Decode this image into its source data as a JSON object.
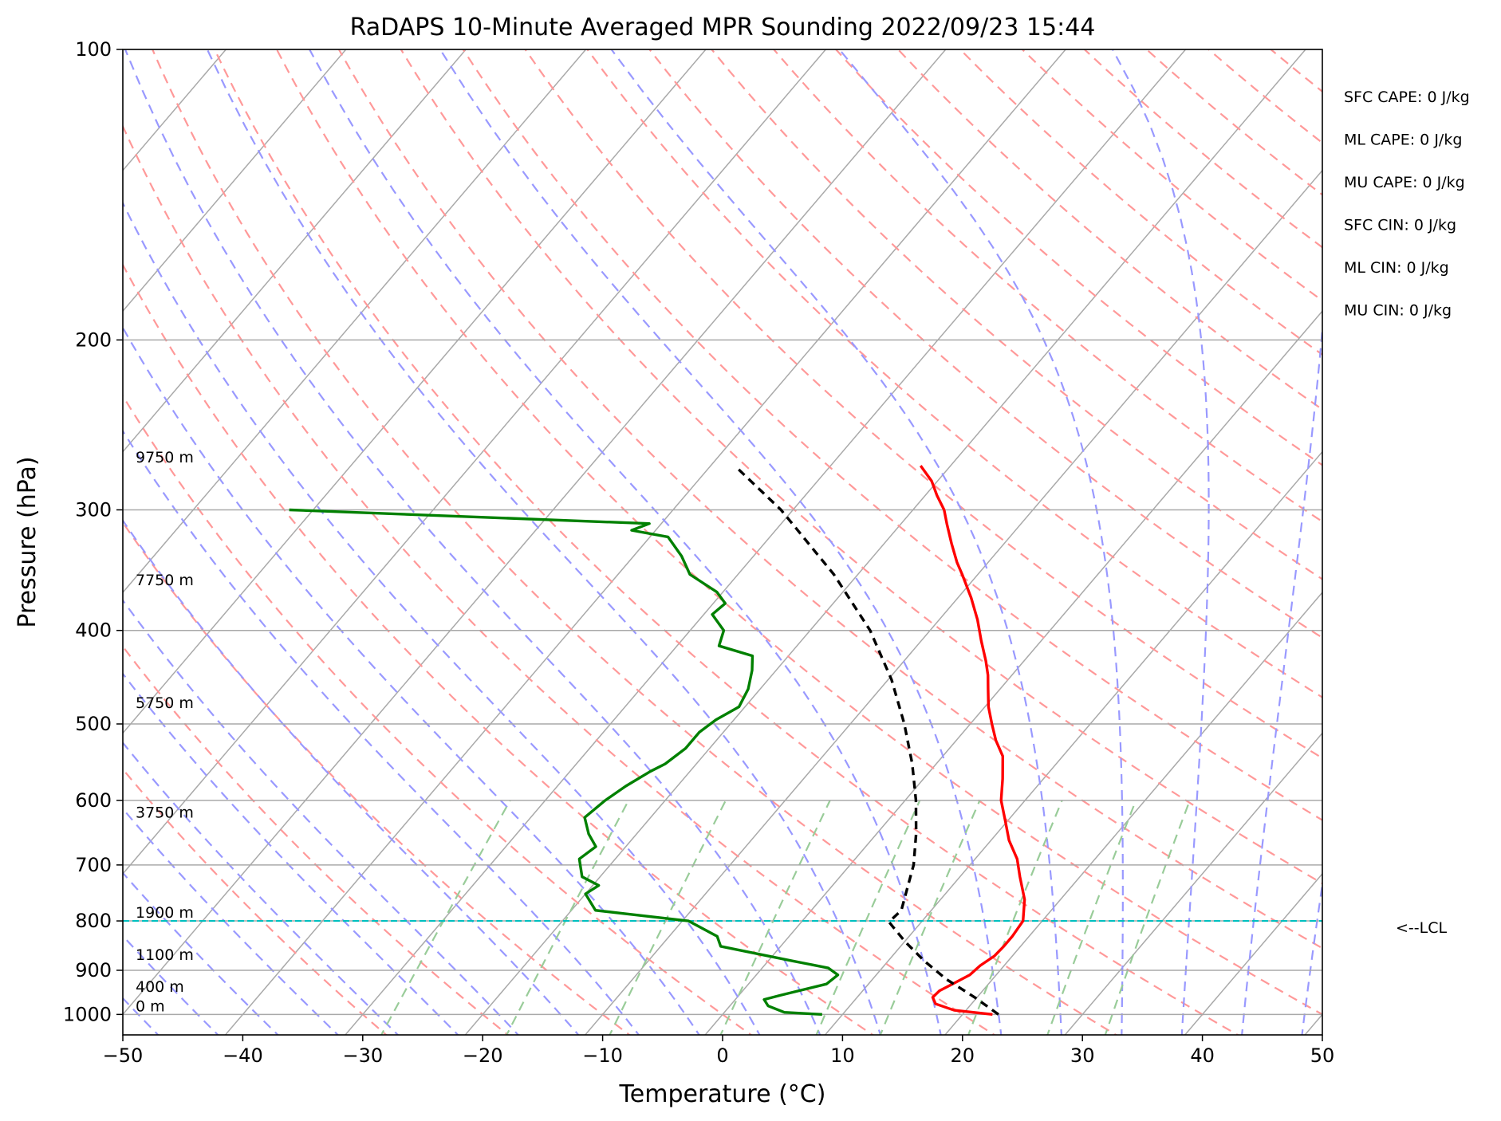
{
  "chart_data": {
    "type": "skew-t",
    "title": "RaDAPS 10-Minute Averaged MPR Sounding 2022/09/23 15:44",
    "xlabel": "Temperature (°C)",
    "ylabel": "Pressure (hPa)",
    "xlim": [
      -50,
      50
    ],
    "ylim": [
      1050,
      100
    ],
    "y_scale": "log",
    "skew_deg_per_decade": 68.6,
    "x_ticks": [
      -50,
      -40,
      -30,
      -20,
      -10,
      0,
      10,
      20,
      30,
      40,
      50
    ],
    "x_tick_labels": [
      "−50",
      "−40",
      "−30",
      "−20",
      "−10",
      "0",
      "10",
      "20",
      "30",
      "40",
      "50"
    ],
    "y_ticks": [
      1000,
      900,
      800,
      700,
      600,
      500,
      400,
      300,
      200,
      100
    ],
    "y_tick_labels": [
      "1000",
      "900",
      "800",
      "700",
      "600",
      "500",
      "400",
      "300",
      "200",
      "100"
    ],
    "grid": true,
    "series": [
      {
        "kind": "temperature",
        "color": "#ff0000",
        "points": [
          [
            1000,
            22.5
          ],
          [
            990,
            19.0
          ],
          [
            975,
            17.0
          ],
          [
            960,
            16.3
          ],
          [
            945,
            16.4
          ],
          [
            930,
            17.0
          ],
          [
            910,
            17.8
          ],
          [
            890,
            18.0
          ],
          [
            870,
            18.5
          ],
          [
            850,
            18.6
          ],
          [
            830,
            18.6
          ],
          [
            800,
            18.4
          ],
          [
            760,
            17.0
          ],
          [
            720,
            15.0
          ],
          [
            690,
            13.5
          ],
          [
            660,
            11.5
          ],
          [
            630,
            9.8
          ],
          [
            600,
            8.0
          ],
          [
            570,
            6.6
          ],
          [
            540,
            5.0
          ],
          [
            520,
            3.3
          ],
          [
            500,
            1.8
          ],
          [
            480,
            0.3
          ],
          [
            460,
            -1.0
          ],
          [
            445,
            -2.0
          ],
          [
            430,
            -3.2
          ],
          [
            410,
            -5.0
          ],
          [
            390,
            -6.8
          ],
          [
            370,
            -8.9
          ],
          [
            350,
            -11.3
          ],
          [
            340,
            -12.6
          ],
          [
            325,
            -14.4
          ],
          [
            310,
            -16.2
          ],
          [
            300,
            -17.4
          ],
          [
            290,
            -19.0
          ],
          [
            280,
            -20.5
          ],
          [
            270,
            -22.5
          ]
        ]
      },
      {
        "kind": "dewpoint",
        "color": "#008000",
        "points": [
          [
            1000,
            8.3
          ],
          [
            995,
            5.0
          ],
          [
            980,
            3.2
          ],
          [
            965,
            2.4
          ],
          [
            955,
            3.5
          ],
          [
            930,
            6.5
          ],
          [
            910,
            6.8
          ],
          [
            895,
            5.5
          ],
          [
            880,
            2.0
          ],
          [
            850,
            -5.0
          ],
          [
            830,
            -6.0
          ],
          [
            800,
            -9.5
          ],
          [
            780,
            -18.0
          ],
          [
            750,
            -20.0
          ],
          [
            735,
            -19.5
          ],
          [
            720,
            -21.5
          ],
          [
            690,
            -23.0
          ],
          [
            670,
            -22.5
          ],
          [
            650,
            -24.0
          ],
          [
            625,
            -25.5
          ],
          [
            600,
            -25.0
          ],
          [
            580,
            -24.3
          ],
          [
            560,
            -23.3
          ],
          [
            550,
            -22.6
          ],
          [
            530,
            -22.0
          ],
          [
            510,
            -22.0
          ],
          [
            495,
            -21.5
          ],
          [
            480,
            -20.5
          ],
          [
            460,
            -21.0
          ],
          [
            440,
            -22.0
          ],
          [
            425,
            -23.0
          ],
          [
            415,
            -26.5
          ],
          [
            400,
            -27.2
          ],
          [
            385,
            -29.3
          ],
          [
            375,
            -29.0
          ],
          [
            365,
            -30.5
          ],
          [
            350,
            -34.0
          ],
          [
            335,
            -36.0
          ],
          [
            320,
            -38.5
          ],
          [
            315,
            -42.0
          ],
          [
            310,
            -41.0
          ],
          [
            300,
            -72.0
          ]
        ]
      },
      {
        "kind": "parcel",
        "color": "#000000",
        "points": [
          [
            1000,
            23.0
          ],
          [
            960,
            19.8
          ],
          [
            920,
            16.2
          ],
          [
            880,
            13.0
          ],
          [
            840,
            10.0
          ],
          [
            802,
            7.3
          ],
          [
            780,
            7.5
          ],
          [
            750,
            6.7
          ],
          [
            700,
            5.3
          ],
          [
            650,
            3.3
          ],
          [
            600,
            0.9
          ],
          [
            550,
            -2.0
          ],
          [
            500,
            -5.5
          ],
          [
            450,
            -9.7
          ],
          [
            400,
            -15.0
          ],
          [
            350,
            -22.0
          ],
          [
            300,
            -31.0
          ],
          [
            270,
            -38.0
          ]
        ]
      }
    ],
    "lcl_pressure": 800,
    "lcl_label": "<--LCL",
    "height_labels": [
      {
        "p": 1000,
        "text": "0 m"
      },
      {
        "p": 955,
        "text": "400 m"
      },
      {
        "p": 885,
        "text": "1100 m"
      },
      {
        "p": 800,
        "text": "1900 m"
      },
      {
        "p": 630,
        "text": "3750 m"
      },
      {
        "p": 485,
        "text": "5750 m"
      },
      {
        "p": 362,
        "text": "7750 m"
      },
      {
        "p": 270,
        "text": "9750 m"
      }
    ],
    "indices": [
      "SFC CAPE: 0 J/kg",
      "ML CAPE: 0 J/kg",
      "MU CAPE: 0 J/kg",
      "SFC CIN: 0 J/kg",
      "ML CIN: 0 J/kg",
      "MU CIN: 0 J/kg"
    ],
    "colors": {
      "isotherm": "#a9a9a9",
      "isobar": "#a9a9a9",
      "dry_adiabat": "#ff9999",
      "moist_adiabat": "#9999ff",
      "mixing_ratio": "#99cc99",
      "lcl": "#00c0c0"
    }
  }
}
